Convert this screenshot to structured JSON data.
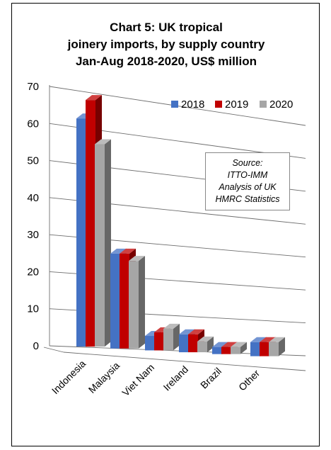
{
  "chart_data": {
    "type": "bar",
    "title_lines": [
      "Chart 5: UK tropical",
      "joinery imports, by supply country",
      "Jan-Aug 2018-2020, US$ million"
    ],
    "categories": [
      "Indonesia",
      "Malaysia",
      "Viet Nam",
      "Ireland",
      "Brazil",
      "Other"
    ],
    "series": [
      {
        "name": "2018",
        "color": "#4472C4",
        "values": [
          62,
          26,
          4,
          5,
          2,
          4
        ]
      },
      {
        "name": "2019",
        "color": "#C00000",
        "values": [
          67,
          26,
          5,
          5,
          2,
          4
        ]
      },
      {
        "name": "2020",
        "color": "#A6A6A6",
        "values": [
          55,
          24,
          6,
          3,
          2,
          4
        ]
      }
    ],
    "yticks": [
      0,
      10,
      20,
      30,
      40,
      50,
      60,
      70
    ],
    "ylim": [
      0,
      70
    ],
    "grid": true,
    "legend_position": "top-right",
    "note_lines": [
      "Source:",
      "ITTO-IMM",
      "Analysis of UK",
      "HMRC Statistics"
    ]
  }
}
